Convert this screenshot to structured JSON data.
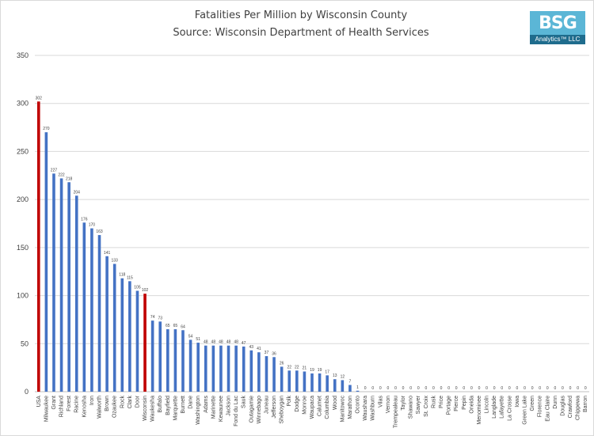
{
  "chart_data": {
    "type": "bar",
    "title": "Fatalities Per Million by Wisconsin County",
    "subtitle": "Source: Wisconsin Department of Health Services",
    "ylim": [
      0,
      350
    ],
    "yticks": [
      0,
      50,
      100,
      150,
      200,
      250,
      300,
      350
    ],
    "grid": true,
    "categories": [
      "USA",
      "Milwaukee",
      "Grant",
      "Richland",
      "Forest",
      "Racine",
      "Kenosha",
      "Iron",
      "Walworth",
      "Brown",
      "Ozaukee",
      "Rock",
      "Clark",
      "Door",
      "Wisconsin",
      "Waukesha",
      "Buffalo",
      "Bayfield",
      "Marquette",
      "Burnett",
      "Dane",
      "Washington",
      "Adams",
      "Marinette",
      "Kewaunee",
      "Jackson",
      "Fond du Lac",
      "Sauk",
      "Outagamie",
      "Winnebago",
      "Juneau",
      "Jefferson",
      "Sheboygan",
      "Polk",
      "Dodge",
      "Monroe",
      "Waupaca",
      "Calumet",
      "Columbia",
      "Wood",
      "Manitowoc",
      "Marathon",
      "Oconto",
      "Waushara",
      "Washburn",
      "Vilas",
      "Vernon",
      "Trempealeau",
      "Taylor",
      "Shawano",
      "Sawyer",
      "St. Croix",
      "Rusk",
      "Price",
      "Portage",
      "Pierce",
      "Pepin",
      "Oneida",
      "Menominee",
      "Lincoln",
      "Langlade",
      "Lafayette",
      "La Crosse",
      "Iowa",
      "Green Lake",
      "Green",
      "Florence",
      "Eau Claire",
      "Dunn",
      "Douglas",
      "Crawford",
      "Chippewa",
      "Barron"
    ],
    "values": [
      302,
      270,
      227,
      222,
      218,
      204,
      176,
      170,
      163,
      141,
      133,
      118,
      115,
      105,
      102,
      74,
      73,
      65,
      65,
      64,
      54,
      51,
      48,
      48,
      48,
      48,
      48,
      47,
      43,
      41,
      37,
      36,
      26,
      22,
      22,
      21,
      19,
      19,
      17,
      13,
      12,
      7,
      1,
      0,
      0,
      0,
      0,
      0,
      0,
      0,
      0,
      0,
      0,
      0,
      0,
      0,
      0,
      0,
      0,
      0,
      0,
      0,
      0,
      0,
      0,
      0,
      0,
      0,
      0,
      0,
      0,
      0,
      0
    ],
    "data_labels": [
      "302",
      "270",
      "227",
      "222",
      "218",
      "204",
      "176",
      "170",
      "163",
      "141",
      "133",
      "118",
      "115",
      "105",
      "102",
      "74",
      "73",
      "65",
      "65",
      "64",
      "54",
      "51",
      "48",
      "48",
      "48",
      "48",
      "48",
      "47",
      "43",
      "41",
      "37",
      "36",
      "26",
      "22",
      "22",
      "21",
      "19",
      "19",
      "17",
      "13",
      "12",
      "7",
      "1",
      "0",
      "0",
      "0",
      "0",
      "0",
      "0",
      "0",
      "0",
      "0",
      "0",
      "0",
      "0",
      "0",
      "0",
      "0",
      "0",
      "0",
      "0",
      "0",
      "0",
      "0",
      "0",
      "0",
      "0",
      "0",
      "0",
      "0",
      "0",
      "0",
      "0"
    ],
    "highlight_categories": [
      "USA",
      "Wisconsin"
    ],
    "colors": {
      "bar": "#4472c4",
      "highlight": "#c00000",
      "grid": "#d9d9d9",
      "axis_text": "#404040"
    }
  },
  "logo": {
    "letters": "BSG",
    "subtitle": "Analytics™ LLC"
  }
}
